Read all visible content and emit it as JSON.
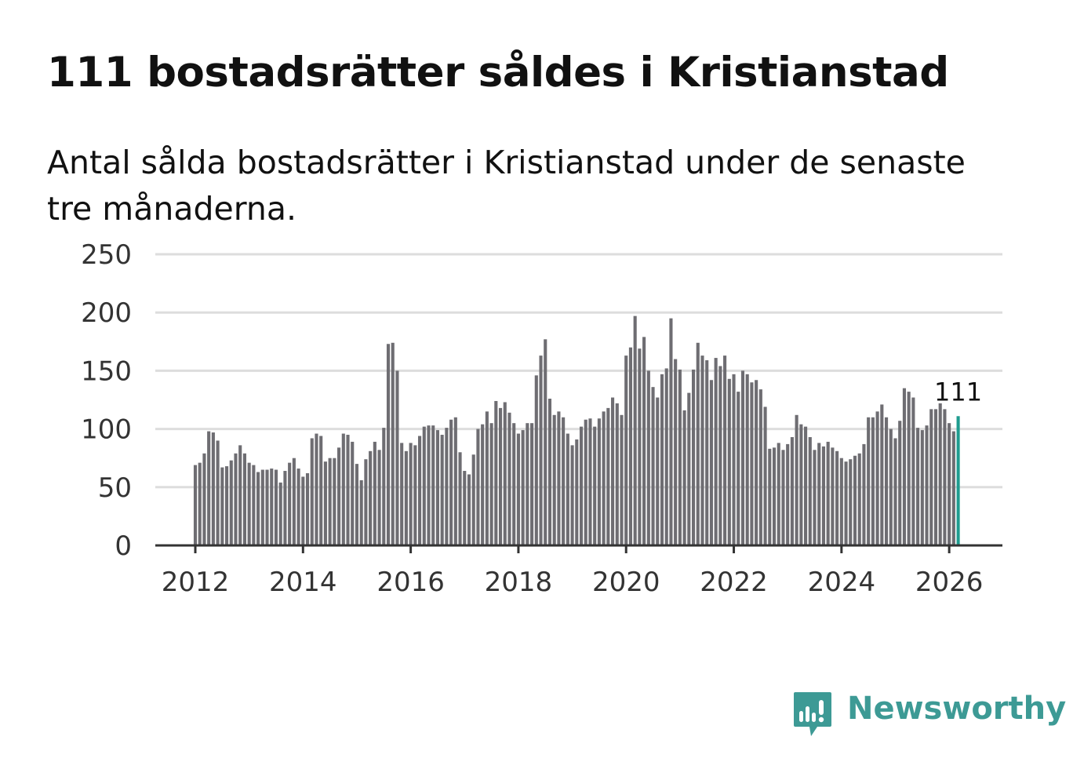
{
  "header": {
    "title": "111 bostadsrätter såldes i Kristianstad",
    "subtitle": "Antal sålda bostadsrätter i Kristianstad under de senaste tre månaderna."
  },
  "brand": {
    "name": "Newsworthy",
    "icon": "newsworthy-chart-bubble-icon",
    "color": "#3d9a95"
  },
  "colors": {
    "bar": "#6e6d72",
    "highlight": "#1f9c8f",
    "grid": "#dddddd",
    "axis": "#333333"
  },
  "chart_data": {
    "type": "bar",
    "title": "111 bostadsrätter såldes i Kristianstad",
    "xlabel": "",
    "ylabel": "",
    "ylim": [
      0,
      250
    ],
    "yticks": [
      0,
      50,
      100,
      150,
      200,
      250
    ],
    "xticks": [
      "2012",
      "2014",
      "2016",
      "2018",
      "2020",
      "2022",
      "2024",
      "2026"
    ],
    "start": "2012-01",
    "frequency": "monthly",
    "highlight": {
      "index": 170,
      "value": 111,
      "label": "111"
    },
    "values": [
      69,
      71,
      79,
      98,
      97,
      90,
      67,
      68,
      73,
      79,
      86,
      79,
      71,
      69,
      63,
      65,
      65,
      66,
      65,
      54,
      64,
      71,
      75,
      66,
      59,
      62,
      92,
      96,
      94,
      72,
      75,
      75,
      84,
      96,
      95,
      89,
      70,
      56,
      74,
      81,
      89,
      82,
      101,
      173,
      174,
      150,
      88,
      81,
      88,
      86,
      94,
      102,
      103,
      103,
      99,
      95,
      101,
      108,
      110,
      80,
      64,
      61,
      78,
      100,
      104,
      115,
      105,
      124,
      118,
      123,
      114,
      105,
      96,
      99,
      105,
      105,
      146,
      163,
      177,
      126,
      112,
      115,
      110,
      96,
      86,
      91,
      102,
      108,
      109,
      102,
      109,
      115,
      118,
      127,
      122,
      112,
      163,
      170,
      197,
      169,
      179,
      150,
      136,
      127,
      147,
      152,
      195,
      160,
      151,
      116,
      131,
      151,
      174,
      163,
      159,
      142,
      161,
      154,
      163,
      143,
      147,
      132,
      150,
      147,
      140,
      142,
      134,
      119,
      83,
      84,
      88,
      82,
      87,
      93,
      112,
      104,
      102,
      93,
      82,
      88,
      85,
      89,
      84,
      81,
      75,
      72,
      74,
      77,
      79,
      87,
      110,
      110,
      115,
      121,
      110,
      100,
      92,
      107,
      135,
      132,
      127,
      101,
      99,
      103,
      117,
      117,
      122,
      117,
      105,
      98,
      111
    ]
  }
}
